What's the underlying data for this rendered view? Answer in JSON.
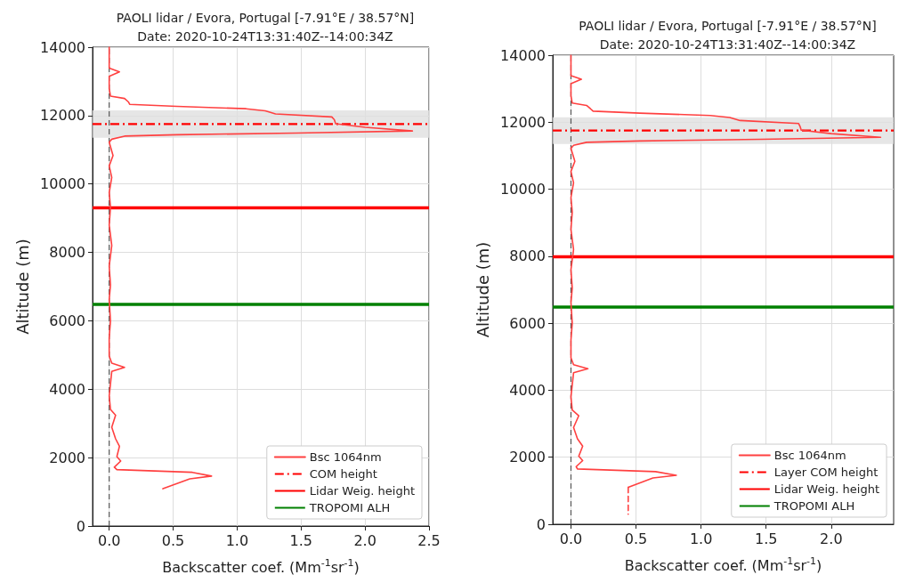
{
  "chart_data": [
    {
      "type": "line",
      "title": "PAOLI lidar / Evora, Portugal [-7.91°E / 38.57°N]",
      "subtitle": "Date: 2020-10-24T13:31:40Z--14:00:34Z",
      "xlabel": "Backscatter coef. (Mm$^{-1}$sr$^{-1}$)",
      "ylabel": "Altitude (m)",
      "marker": "none",
      "grid": true,
      "legend": "bottom right",
      "xlim": [
        -0.13,
        2.5
      ],
      "xticks": [
        {
          "value": 0,
          "label": "0.0"
        },
        {
          "value": 0.5,
          "label": "0.5"
        },
        {
          "value": 1,
          "label": "1.0"
        },
        {
          "value": 1.5,
          "label": "1.5"
        },
        {
          "value": 2,
          "label": "2.0"
        },
        {
          "value": 2.5,
          "label": "2.5"
        }
      ],
      "ylim": [
        0,
        14000
      ],
      "yticks": [
        0,
        2000,
        4000,
        6000,
        8000,
        10000,
        12000,
        14000
      ],
      "bands": [
        {
          "axis": "y",
          "from": 11350,
          "to": 12150,
          "color": "#e0e0e0"
        }
      ],
      "ref_lines": [
        {
          "axis": "x",
          "value": 0,
          "color": "#555555",
          "line_style": "dashed"
        },
        {
          "axis": "y",
          "value": 11750,
          "label": "COM height",
          "color": "#ff0000",
          "line_style": "dashdot"
        },
        {
          "axis": "y",
          "value": 9300,
          "label": "Lidar Weig. height",
          "color": "#ff0000",
          "line_style": "solid"
        },
        {
          "axis": "y",
          "value": 6480,
          "label": "TROPOMI ALH",
          "color": "#008000",
          "line_style": "solid"
        }
      ],
      "series": [
        {
          "name": "Bsc 1064nm",
          "color": "#ff4040",
          "line_style": "solid",
          "x": [
            0.42,
            0.63,
            0.8,
            0.65,
            0.06,
            0.04,
            0.09,
            0.06,
            0.08,
            0.05,
            0.02,
            0.05,
            0.01,
            0,
            0.02,
            0.12,
            0.02,
            0,
            0,
            0.01,
            0,
            0.01,
            0,
            0.02,
            0,
            0.01,
            0,
            0.02,
            0,
            0.03,
            0,
            0.02,
            0.12,
            0.53,
            1.46,
            2.37,
            2,
            1.77,
            1.76,
            1.74,
            1.3,
            1.22,
            1.07,
            0.53,
            0.16,
            0.15,
            0.12,
            0.01,
            0,
            0,
            0.08,
            0,
            0
          ],
          "values": [
            1090,
            1380,
            1460,
            1570,
            1650,
            1720,
            1900,
            2030,
            2330,
            2550,
            2890,
            3240,
            3410,
            3800,
            4520,
            4640,
            4760,
            4970,
            5500,
            6000,
            6620,
            7050,
            7600,
            8200,
            8800,
            9320,
            9750,
            10190,
            10530,
            10830,
            11220,
            11310,
            11400,
            11440,
            11490,
            11550,
            11660,
            11760,
            11880,
            11960,
            12050,
            12140,
            12200,
            12270,
            12330,
            12400,
            12500,
            12570,
            12790,
            13150,
            13280,
            13390,
            14000
          ]
        }
      ]
    },
    {
      "type": "line",
      "title": "PAOLI lidar / Evora, Portugal [-7.91°E / 38.57°N]",
      "subtitle": "Date: 2020-10-24T13:31:40Z--14:00:34Z",
      "xlabel": "Backscatter coef. (Mm$^{-1}$sr$^{-1}$)",
      "ylabel": "Altitude (m)",
      "marker": "none",
      "grid": true,
      "legend": "bottom right",
      "xlim": [
        -0.14,
        2.48
      ],
      "xticks": [
        {
          "value": 0,
          "label": "0.0"
        },
        {
          "value": 0.5,
          "label": "0.5"
        },
        {
          "value": 1,
          "label": "1.0"
        },
        {
          "value": 1.5,
          "label": "1.5"
        },
        {
          "value": 2,
          "label": "2.0"
        }
      ],
      "ylim": [
        0,
        14000
      ],
      "yticks": [
        0,
        2000,
        4000,
        6000,
        8000,
        10000,
        12000,
        14000
      ],
      "bands": [
        {
          "axis": "y",
          "from": 11350,
          "to": 12150,
          "color": "#e0e0e0"
        }
      ],
      "ref_lines": [
        {
          "axis": "x",
          "value": 0,
          "color": "#555555",
          "line_style": "dashed"
        },
        {
          "axis": "y",
          "value": 11750,
          "label": "Layer COM height",
          "color": "#ff0000",
          "line_style": "dashdot"
        },
        {
          "axis": "y",
          "value": 7980,
          "label": "Lidar Weig. height",
          "color": "#ff0000",
          "line_style": "solid"
        },
        {
          "axis": "y",
          "value": 6480,
          "label": "TROPOMI ALH",
          "color": "#008000",
          "line_style": "solid"
        }
      ],
      "series": [
        {
          "name": "Bsc 1064nm",
          "color": "#ff4040",
          "line_style": "solid",
          "x": [
            0.44,
            0.63,
            0.81,
            0.65,
            0.05,
            0.04,
            0.09,
            0.06,
            0.09,
            0.05,
            0.02,
            0.06,
            0.01,
            0,
            0.02,
            0.13,
            0.02,
            0,
            0,
            0.01,
            0,
            0.01,
            0,
            0.02,
            0,
            0.01,
            0,
            0.02,
            0,
            0.03,
            0,
            0.02,
            0.12,
            0.53,
            1.46,
            2.38,
            2,
            1.77,
            1.76,
            1.75,
            1.3,
            1.22,
            1.07,
            0.53,
            0.17,
            0.15,
            0.12,
            0.01,
            0,
            0,
            0.08,
            0,
            0
          ],
          "values": [
            1100,
            1380,
            1460,
            1570,
            1650,
            1720,
            1900,
            2030,
            2330,
            2550,
            2890,
            3240,
            3410,
            3800,
            4520,
            4640,
            4760,
            4970,
            5500,
            6000,
            6620,
            7050,
            7600,
            8200,
            8800,
            9320,
            9750,
            10190,
            10530,
            10830,
            11220,
            11310,
            11400,
            11440,
            11490,
            11550,
            11660,
            11760,
            11880,
            11960,
            12050,
            12140,
            12200,
            12270,
            12330,
            12400,
            12500,
            12570,
            12790,
            13150,
            13280,
            13390,
            14000
          ]
        },
        {
          "color": "#ff4040",
          "line_style": "dashed",
          "x": [
            0.44,
            0.44
          ],
          "values": [
            1100,
            300
          ]
        }
      ]
    }
  ]
}
